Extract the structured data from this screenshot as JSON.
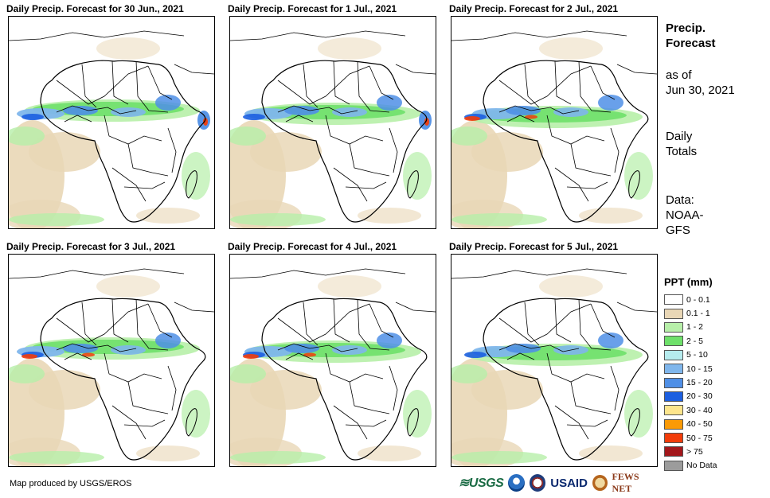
{
  "panels": [
    {
      "title": "Daily Precip. Forecast for 30 Jun., 2021"
    },
    {
      "title": "Daily Precip. Forecast for 1 Jul., 2021"
    },
    {
      "title": "Daily Precip. Forecast for 2 Jul., 2021"
    },
    {
      "title": "Daily Precip. Forecast for 3 Jul., 2021"
    },
    {
      "title": "Daily Precip. Forecast for 4 Jul., 2021"
    },
    {
      "title": "Daily Precip. Forecast for 5 Jul., 2021"
    }
  ],
  "sidebar": {
    "title_line1": "Precip.",
    "title_line2": "Forecast",
    "asof_line1": "as of",
    "asof_line2": "Jun 30, 2021",
    "totals_line1": "Daily",
    "totals_line2": "Totals",
    "source_line1": "Data:",
    "source_line2": "NOAA-",
    "source_line3": "GFS"
  },
  "legend": {
    "title": "PPT (mm)",
    "items": [
      {
        "label": "0 - 0.1",
        "color": "#ffffff"
      },
      {
        "label": "0.1 - 1",
        "color": "#e9d7b6"
      },
      {
        "label": "1 - 2",
        "color": "#b7efa9"
      },
      {
        "label": "2 - 5",
        "color": "#6ee06a"
      },
      {
        "label": "5 - 10",
        "color": "#b5ebee"
      },
      {
        "label": "10 - 15",
        "color": "#7fb6ec"
      },
      {
        "label": "15 - 20",
        "color": "#4f8fe6"
      },
      {
        "label": "20 - 30",
        "color": "#1c5fe0"
      },
      {
        "label": "30 - 40",
        "color": "#fde58c"
      },
      {
        "label": "40 - 50",
        "color": "#fb9a06"
      },
      {
        "label": "50 - 75",
        "color": "#f23c0a"
      },
      {
        "label": "> 75",
        "color": "#a3171b"
      },
      {
        "label": "No Data",
        "color": "#9c9c9c"
      }
    ]
  },
  "footer": {
    "credit": "Map produced by USGS/EROS",
    "logo_usgs": "≋USGS",
    "logo_usaid": "USAID",
    "logo_fews": "FEWS NET"
  }
}
